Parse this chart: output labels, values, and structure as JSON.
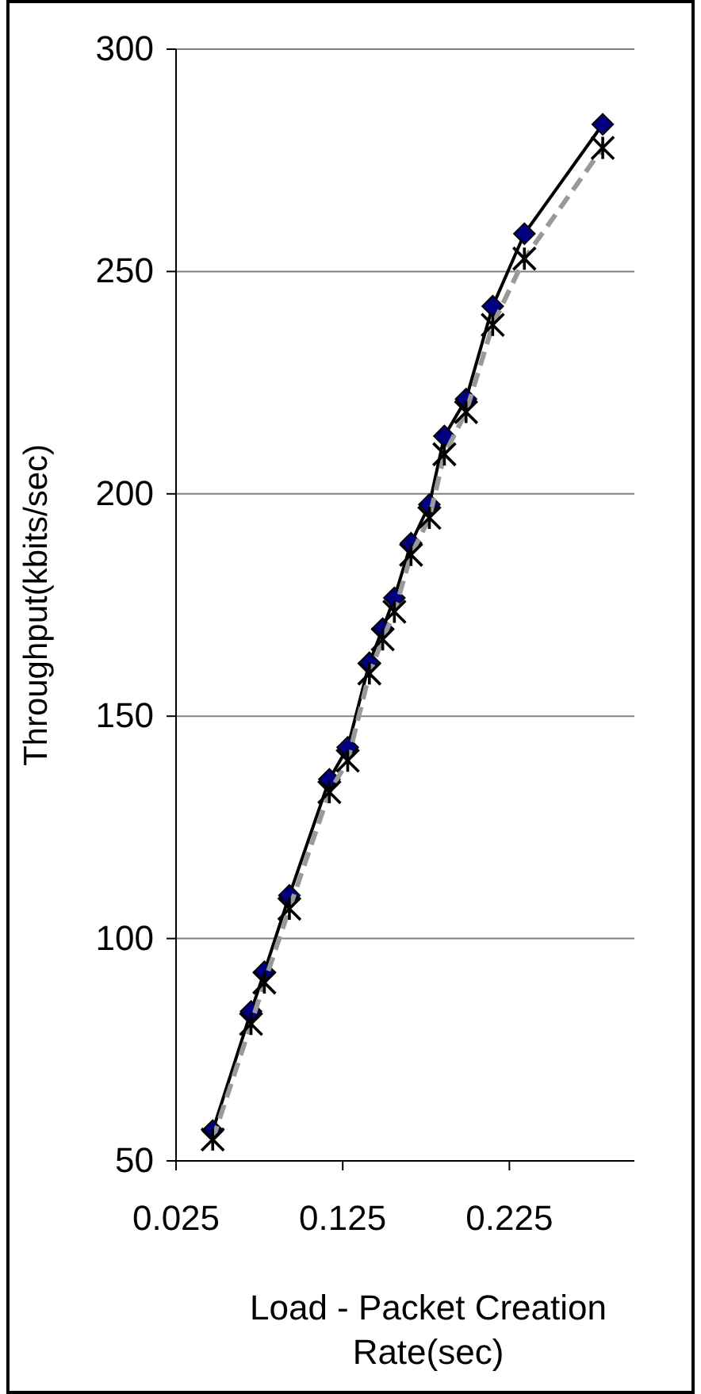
{
  "chart_data": {
    "type": "line",
    "xlabel": "Load - Packet Creation Rate(sec)",
    "ylabel": "Throughput(kbits/sec)",
    "x": [
      0.047,
      0.07,
      0.078,
      0.093,
      0.117,
      0.128,
      0.141,
      0.149,
      0.156,
      0.166,
      0.177,
      0.186,
      0.199,
      0.215,
      0.234,
      0.281
    ],
    "series": [
      {
        "color": "#000080",
        "marker": "diamond",
        "line_style": "solid",
        "values": [
          56.8,
          83.6,
          92.5,
          109.7,
          135.8,
          143,
          162,
          169.7,
          176.6,
          188.9,
          197.6,
          213,
          221.3,
          242.2,
          258.5,
          283.1
        ]
      },
      {
        "color": "#999999",
        "marker": "cross",
        "line_style": "dashed",
        "values": [
          54.8,
          80.8,
          90.1,
          106.7,
          132.9,
          140,
          159.6,
          167.3,
          173.5,
          186.3,
          194.6,
          208.9,
          218.4,
          238,
          252.9,
          277.8
        ]
      }
    ],
    "xlim": [
      0.025,
      0.3
    ],
    "xticks": [
      0.025,
      0.125,
      0.225
    ],
    "ylim": [
      50,
      300
    ],
    "yticks": [
      50,
      100,
      150,
      200,
      250,
      300
    ],
    "grid": "y"
  }
}
